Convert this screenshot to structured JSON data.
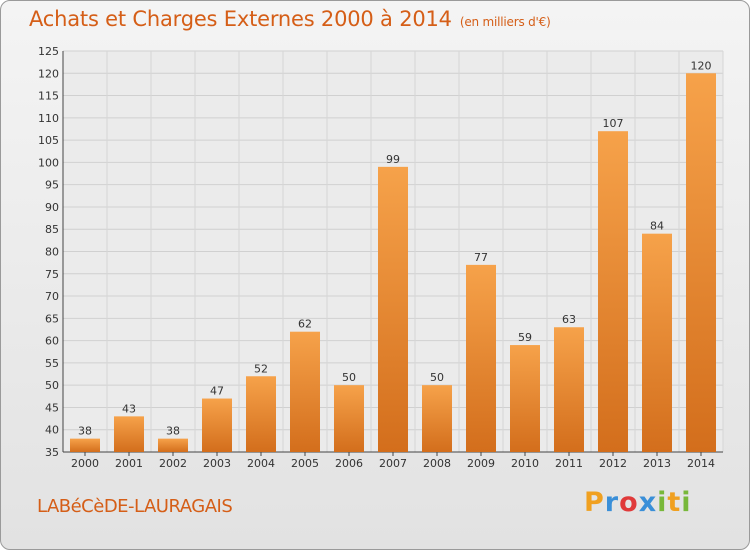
{
  "header": {
    "title": "Achats et Charges Externes 2000 à 2014",
    "unit_note": "(en milliers d'€)"
  },
  "commune": "LABéCèDE-LAURAGAIS",
  "brand": {
    "letters": [
      "P",
      "r",
      "o",
      "x",
      "i",
      "t",
      "i"
    ],
    "colors": [
      "#f0a020",
      "#3a8fd8",
      "#e03a3a",
      "#3a8fd8",
      "#78b83a",
      "#f0a020",
      "#78b83a"
    ]
  },
  "colors": {
    "accent": "#d55e17",
    "bar_top": "#f6a24a",
    "bar_bottom": "#d36e1c"
  },
  "chart_data": {
    "type": "bar",
    "title": "Achats et Charges Externes 2000 à 2014",
    "subtitle": "(en milliers d'€)",
    "xlabel": "",
    "ylabel": "",
    "categories": [
      "2000",
      "2001",
      "2002",
      "2003",
      "2004",
      "2005",
      "2006",
      "2007",
      "2008",
      "2009",
      "2010",
      "2011",
      "2012",
      "2013",
      "2014"
    ],
    "values": [
      38,
      43,
      38,
      47,
      52,
      62,
      50,
      99,
      50,
      77,
      59,
      63,
      107,
      84,
      120
    ],
    "ylim": [
      35,
      125
    ],
    "yticks": [
      35,
      40,
      45,
      50,
      55,
      60,
      65,
      70,
      75,
      80,
      85,
      90,
      95,
      100,
      105,
      110,
      115,
      120,
      125
    ],
    "grid": true,
    "legend": "none"
  }
}
